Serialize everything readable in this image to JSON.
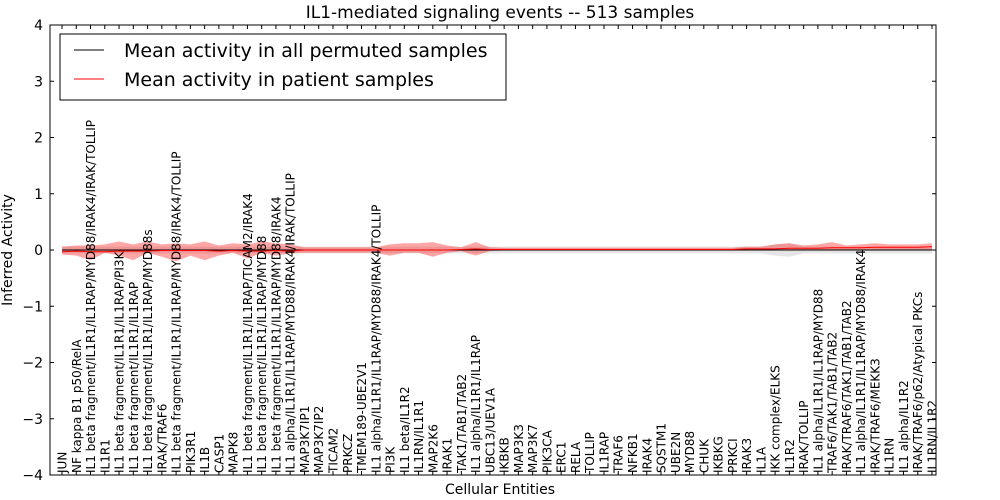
{
  "chart_data": {
    "type": "line",
    "title": "IL1-mediated signaling events -- 513 samples",
    "xlabel": "Cellular Entities",
    "ylabel": "Inferred Activity",
    "ylim": [
      -4,
      4
    ],
    "yticks": [
      -4,
      -3,
      -2,
      -1,
      0,
      1,
      2,
      3,
      4
    ],
    "ytick_labels": [
      "−4",
      "−3",
      "−2",
      "−1",
      "0",
      "1",
      "2",
      "3",
      "4"
    ],
    "grid": false,
    "legend_position": "top-left",
    "categories": [
      "JUN",
      "NF kappa B1 p50/RelA",
      "IL1 beta fragment/IL1R1/IL1RAP/MYD88/IRAK4/IRAK/TOLLIP",
      "IL1R1",
      "IL1 beta fragment/IL1R1/IL1RAP/PI3K",
      "IL1 beta fragment/IL1R1/IL1RAP",
      "IL1 beta fragment/IL1R1/IL1RAP/MYD88s",
      "IRAK/TRAF6",
      "IL1 beta fragment/IL1R1/IL1RAP/MYD88/IRAK4/TOLLIP",
      "PIK3R1",
      "IL1B",
      "CASP1",
      "MAPK8",
      "IL1 beta fragment/IL1R1/IL1RAP/TICAM2/IRAK4",
      "IL1 beta fragment/IL1R1/IL1RAP/MYD88",
      "IL1 beta fragment/IL1R1/IL1RAP/MYD88/IRAK4",
      "IL1 alpha/IL1R1/IL1RAP/MYD88/IRAK4/IRAK/TOLLIP",
      "MAP3K7IP1",
      "MAP3K7IP2",
      "TICAM2",
      "PRKCZ",
      "TMEM189-UBE2V1",
      "IL1 alpha/IL1R1/IL1RAP/MYD88/IRAK4/TOLLIP",
      "PI3K",
      "IL1 beta/IL1R2",
      "IL1RN/IL1R1",
      "MAP2K6",
      "IRAK1",
      "TAK1/TAB1/TAB2",
      "IL1 alpha/IL1R1/IL1RAP",
      "UBC13/UEV1A",
      "IKBKB",
      "MAP3K3",
      "MAP3K7",
      "PIK3CA",
      "ERC1",
      "RELA",
      "TOLLIP",
      "IL1RAP",
      "TRAF6",
      "NFKB1",
      "IRAK4",
      "SQSTM1",
      "UBE2N",
      "MYD88",
      "CHUK",
      "IKBKG",
      "PRKCI",
      "IRAK3",
      "IL1A",
      "IKK complex/ELKS",
      "IL1R2",
      "IRAK/TOLLIP",
      "IL1 alpha/IL1R1/IL1RAP/MYD88",
      "TRAF6/TAK1/TAB1/TAB2",
      "IRAK/TRAF6/TAK1/TAB1/TAB2",
      "IL1 alpha/IL1R1/IL1RAP/MYD88/IRAK4",
      "IRAK/TRAF6/MEKK3",
      "IL1RN",
      "IL1 alpha/IL1R2",
      "IRAK/TRAF6/p62/Atypical PKCs",
      "IL1RN/IL1R2"
    ],
    "series": [
      {
        "name": "Mean activity in all permuted samples",
        "color": "#000000",
        "values": [
          0,
          0,
          0,
          0,
          0,
          0,
          0,
          0,
          0,
          0,
          0,
          0,
          0,
          0,
          0,
          0,
          0,
          0,
          0,
          0,
          0,
          0,
          0,
          0,
          0,
          0,
          0,
          0,
          0,
          0,
          0,
          0,
          0,
          0,
          0,
          0,
          0,
          0,
          0,
          0,
          0,
          0,
          0,
          0,
          0,
          0,
          0,
          0,
          0,
          0,
          0,
          0,
          0,
          0,
          0,
          0,
          0,
          0,
          0,
          0,
          0,
          0
        ],
        "band_low": [
          -0.06,
          -0.06,
          -0.06,
          -0.06,
          -0.06,
          -0.06,
          -0.06,
          -0.06,
          -0.06,
          -0.06,
          -0.06,
          -0.06,
          -0.06,
          -0.06,
          -0.06,
          -0.06,
          -0.06,
          -0.06,
          -0.06,
          -0.06,
          -0.06,
          -0.06,
          -0.06,
          -0.06,
          -0.06,
          -0.06,
          -0.06,
          -0.06,
          -0.06,
          -0.06,
          -0.06,
          -0.06,
          -0.06,
          -0.06,
          -0.06,
          -0.06,
          -0.06,
          -0.06,
          -0.06,
          -0.06,
          -0.06,
          -0.06,
          -0.06,
          -0.06,
          -0.06,
          -0.06,
          -0.06,
          -0.06,
          -0.06,
          -0.06,
          -0.1,
          -0.12,
          -0.06,
          -0.06,
          -0.06,
          -0.06,
          -0.06,
          -0.06,
          -0.06,
          -0.06,
          -0.06,
          -0.06
        ],
        "band_high": [
          0.06,
          0.06,
          0.06,
          0.06,
          0.06,
          0.06,
          0.06,
          0.06,
          0.06,
          0.06,
          0.06,
          0.06,
          0.06,
          0.06,
          0.06,
          0.06,
          0.06,
          0.06,
          0.06,
          0.06,
          0.06,
          0.06,
          0.06,
          0.06,
          0.06,
          0.06,
          0.06,
          0.06,
          0.06,
          0.06,
          0.06,
          0.06,
          0.06,
          0.06,
          0.06,
          0.06,
          0.06,
          0.06,
          0.06,
          0.06,
          0.06,
          0.06,
          0.06,
          0.06,
          0.06,
          0.06,
          0.06,
          0.06,
          0.06,
          0.06,
          0.1,
          0.12,
          0.06,
          0.06,
          0.06,
          0.06,
          0.06,
          0.06,
          0.06,
          0.06,
          0.06,
          0.06
        ]
      },
      {
        "name": "Mean activity in patient samples",
        "color": "#ff0000",
        "values": [
          -0.03,
          -0.02,
          -0.03,
          -0.03,
          -0.02,
          -0.02,
          -0.02,
          -0.01,
          -0.01,
          -0.01,
          -0.01,
          -0.02,
          -0.01,
          -0.02,
          -0.02,
          -0.01,
          -0.02,
          0.0,
          0.0,
          0.0,
          0.0,
          0.0,
          0.0,
          0.0,
          0.0,
          0.0,
          0.0,
          0.0,
          0.01,
          0.02,
          0.01,
          0.01,
          0.01,
          0.01,
          0.01,
          0.01,
          0.01,
          0.01,
          0.01,
          0.01,
          0.01,
          0.01,
          0.01,
          0.01,
          0.01,
          0.01,
          0.01,
          0.01,
          0.02,
          0.02,
          0.02,
          0.03,
          0.03,
          0.03,
          0.04,
          0.04,
          0.04,
          0.05,
          0.05,
          0.05,
          0.05,
          0.06
        ],
        "band_low": [
          -0.08,
          -0.1,
          -0.18,
          -0.05,
          -0.1,
          -0.18,
          -0.05,
          -0.12,
          -0.2,
          -0.1,
          -0.18,
          -0.1,
          -0.05,
          -0.15,
          -0.05,
          -0.1,
          -0.06,
          -0.05,
          -0.05,
          -0.05,
          -0.05,
          -0.05,
          -0.05,
          -0.1,
          -0.05,
          -0.05,
          -0.12,
          -0.05,
          -0.02,
          -0.1,
          -0.02,
          -0.01,
          -0.01,
          -0.01,
          -0.01,
          -0.01,
          -0.01,
          -0.01,
          -0.01,
          -0.01,
          -0.01,
          -0.01,
          -0.01,
          -0.01,
          -0.01,
          -0.01,
          -0.01,
          -0.01,
          -0.01,
          -0.01,
          -0.01,
          -0.01,
          0.0,
          -0.01,
          0.0,
          0.0,
          0.0,
          0.0,
          0.0,
          0.0,
          0.0,
          0.0
        ],
        "band_high": [
          0.06,
          0.08,
          0.08,
          0.1,
          0.15,
          0.1,
          0.15,
          0.1,
          0.12,
          0.1,
          0.15,
          0.08,
          0.12,
          0.1,
          0.15,
          0.12,
          0.1,
          0.05,
          0.05,
          0.05,
          0.05,
          0.05,
          0.05,
          0.1,
          0.12,
          0.12,
          0.14,
          0.08,
          0.05,
          0.14,
          0.05,
          0.04,
          0.04,
          0.04,
          0.04,
          0.04,
          0.04,
          0.04,
          0.04,
          0.04,
          0.04,
          0.04,
          0.04,
          0.04,
          0.04,
          0.04,
          0.04,
          0.04,
          0.06,
          0.06,
          0.1,
          0.12,
          0.08,
          0.1,
          0.14,
          0.08,
          0.1,
          0.12,
          0.1,
          0.1,
          0.1,
          0.12
        ]
      }
    ]
  }
}
